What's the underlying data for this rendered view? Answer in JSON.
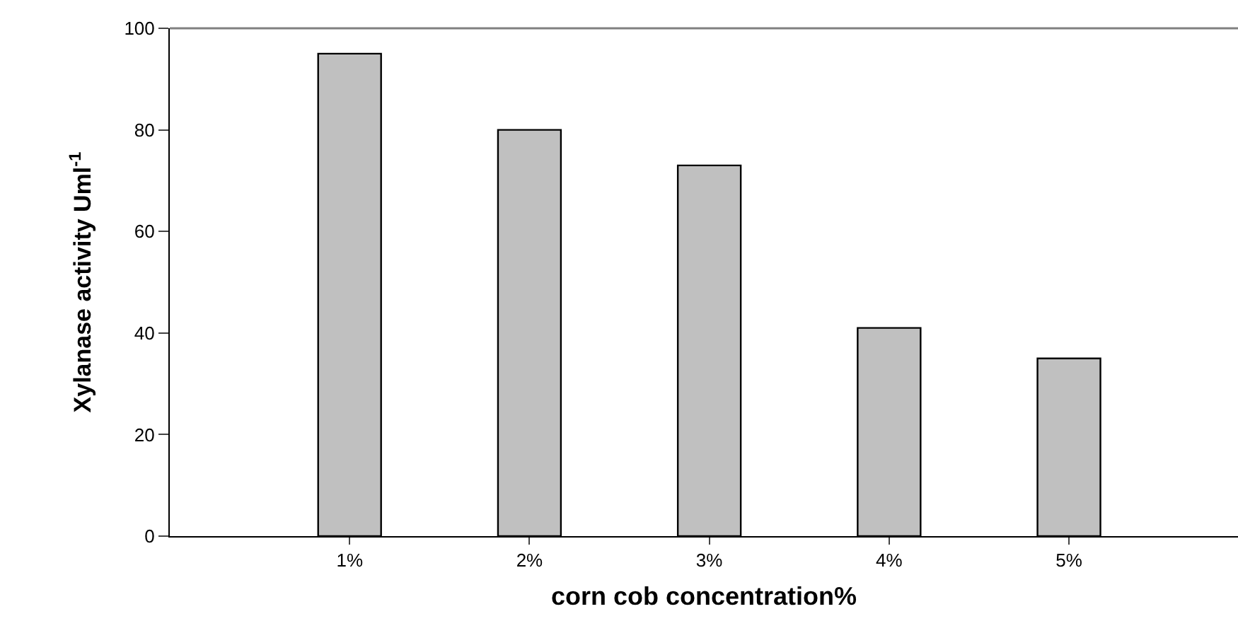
{
  "chart_data": {
    "type": "bar",
    "xlabel": "corn cob concentration%",
    "ylabel": "Xylanase activity Uml$^{-1}$",
    "categories": [
      "1%",
      "2%",
      "3%",
      "4%",
      "5%"
    ],
    "values": [
      95,
      80,
      73,
      41,
      35
    ],
    "color": "#c0c0c0",
    "ylim": [
      0,
      100
    ],
    "yticks": [
      0,
      20,
      40,
      60,
      80,
      100
    ],
    "legend": false
  }
}
